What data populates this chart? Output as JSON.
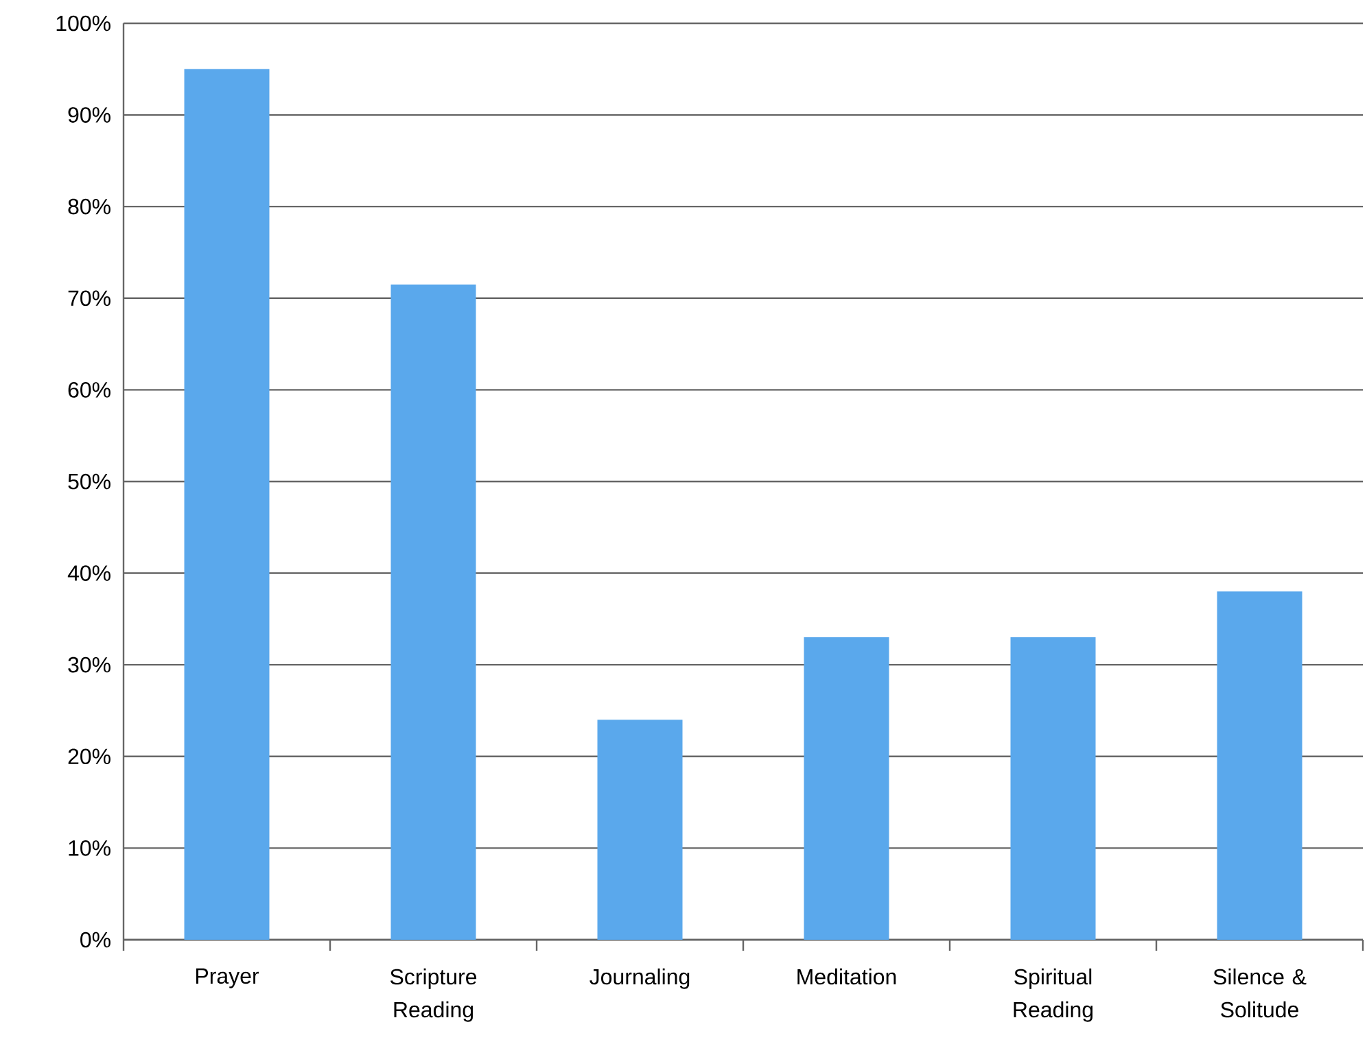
{
  "chart_data": {
    "type": "bar",
    "categories": [
      "Prayer",
      "Scripture Reading",
      "Journaling",
      "Meditation",
      "Spiritual Reading",
      "Silence & Solitude"
    ],
    "values": [
      95,
      71.5,
      24,
      33,
      33,
      38
    ],
    "color": "#5aa8ec",
    "ylim": [
      0,
      100
    ],
    "yticks": [
      {
        "value": 0,
        "label": "0%"
      },
      {
        "value": 10,
        "label": "10%"
      },
      {
        "value": 20,
        "label": "20%"
      },
      {
        "value": 30,
        "label": "30%"
      },
      {
        "value": 40,
        "label": "40%"
      },
      {
        "value": 50,
        "label": "50%"
      },
      {
        "value": 60,
        "label": "60%"
      },
      {
        "value": 70,
        "label": "70%"
      },
      {
        "value": 80,
        "label": "80%"
      },
      {
        "value": 90,
        "label": "90%"
      },
      {
        "value": 100,
        "label": "100%"
      }
    ],
    "grid": "y"
  }
}
